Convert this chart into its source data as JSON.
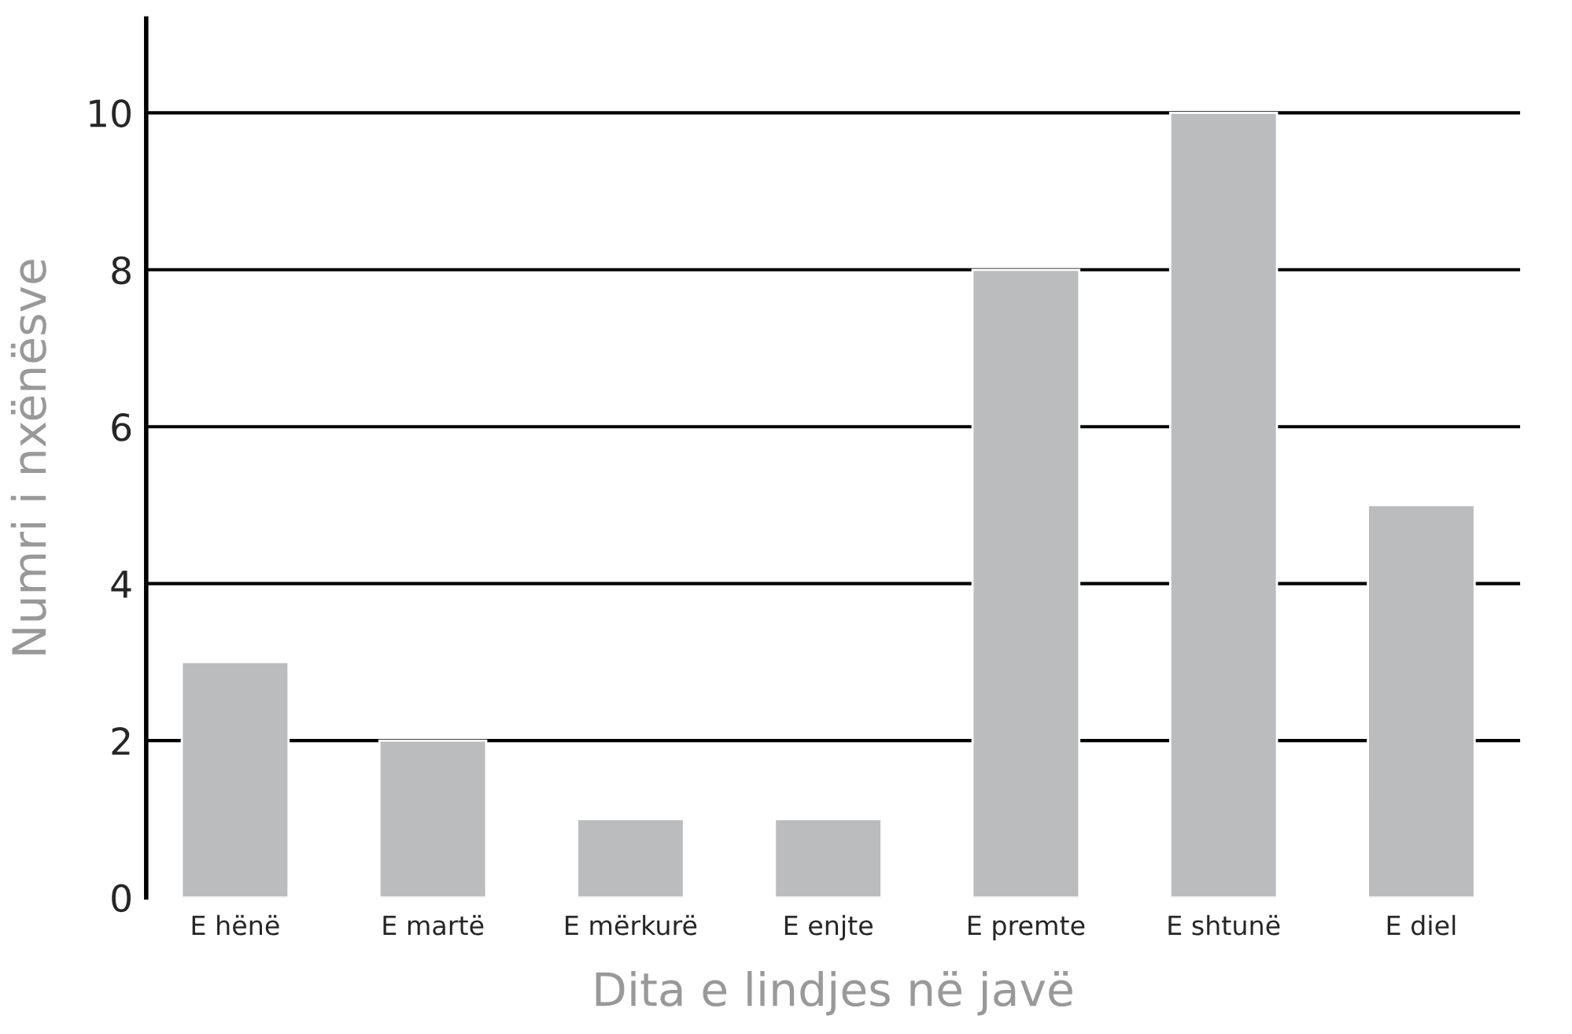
{
  "chart_data": {
    "type": "bar",
    "xlabel": "Dita e lindjes në javë",
    "ylabel": "Numri i nxënësve",
    "categories": [
      "E hënë",
      "E martë",
      "E mërkurë",
      "E enjte",
      "E premte",
      "E shtunë",
      "E diel"
    ],
    "values": [
      3,
      2,
      1,
      1,
      8,
      10,
      5
    ],
    "color": "#bbbcbe",
    "ylim": [
      0,
      11.2
    ],
    "yticks": [
      0,
      2,
      4,
      6,
      8,
      10
    ],
    "grid": "y",
    "legend": false
  }
}
